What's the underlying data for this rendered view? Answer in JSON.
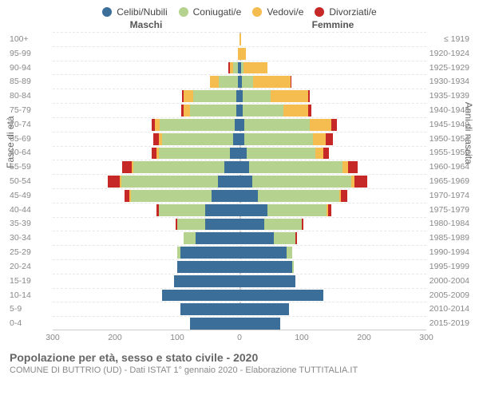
{
  "legend": [
    {
      "label": "Celibi/Nubili",
      "color": "#3b6e98"
    },
    {
      "label": "Coniugati/e",
      "color": "#b5d28e"
    },
    {
      "label": "Vedovi/e",
      "color": "#f5bc4f"
    },
    {
      "label": "Divorziati/e",
      "color": "#c62828"
    }
  ],
  "gender_left": "Maschi",
  "gender_right": "Femmine",
  "y_left_title": "Fasce di età",
  "y_right_title": "Anni di nascita",
  "footer_title": "Popolazione per età, sesso e stato civile - 2020",
  "footer_sub": "COMUNE DI BUTTRIO (UD) - Dati ISTAT 1° gennaio 2020 - Elaborazione TUTTITALIA.IT",
  "xaxis": {
    "max": 300,
    "ticks": [
      300,
      200,
      100,
      0,
      100,
      200,
      300
    ]
  },
  "colors": {
    "celibi": "#3b6e98",
    "coniugati": "#b5d28e",
    "vedovi": "#f5bc4f",
    "divorziati": "#c62828",
    "grid": "#e8e8e8",
    "center_line": "#cccccc",
    "text_muted": "#888888",
    "background": "#ffffff"
  },
  "fonts": {
    "base": 11,
    "legend": 12,
    "title": 14,
    "axis_label": 12,
    "tick": 10.5,
    "family": "Arial"
  },
  "rows": [
    {
      "age": "100+",
      "birth": "≤ 1919",
      "m": {
        "c": 0,
        "g": 0,
        "v": 0,
        "d": 0
      },
      "f": {
        "c": 0,
        "g": 0,
        "v": 2,
        "d": 0
      }
    },
    {
      "age": "95-99",
      "birth": "1920-1924",
      "m": {
        "c": 0,
        "g": 0,
        "v": 2,
        "d": 0
      },
      "f": {
        "c": 0,
        "g": 0,
        "v": 10,
        "d": 0
      }
    },
    {
      "age": "90-94",
      "birth": "1925-1929",
      "m": {
        "c": 2,
        "g": 8,
        "v": 6,
        "d": 2
      },
      "f": {
        "c": 2,
        "g": 5,
        "v": 38,
        "d": 0
      }
    },
    {
      "age": "85-89",
      "birth": "1930-1934",
      "m": {
        "c": 3,
        "g": 30,
        "v": 15,
        "d": 0
      },
      "f": {
        "c": 4,
        "g": 18,
        "v": 60,
        "d": 2
      }
    },
    {
      "age": "80-84",
      "birth": "1935-1939",
      "m": {
        "c": 5,
        "g": 70,
        "v": 15,
        "d": 2
      },
      "f": {
        "c": 5,
        "g": 45,
        "v": 60,
        "d": 3
      }
    },
    {
      "age": "75-79",
      "birth": "1940-1944",
      "m": {
        "c": 5,
        "g": 75,
        "v": 10,
        "d": 3
      },
      "f": {
        "c": 5,
        "g": 65,
        "v": 40,
        "d": 5
      }
    },
    {
      "age": "70-74",
      "birth": "1945-1949",
      "m": {
        "c": 8,
        "g": 120,
        "v": 8,
        "d": 5
      },
      "f": {
        "c": 8,
        "g": 105,
        "v": 35,
        "d": 8
      }
    },
    {
      "age": "65-69",
      "birth": "1950-1954",
      "m": {
        "c": 10,
        "g": 115,
        "v": 5,
        "d": 8
      },
      "f": {
        "c": 8,
        "g": 110,
        "v": 20,
        "d": 12
      }
    },
    {
      "age": "60-64",
      "birth": "1955-1959",
      "m": {
        "c": 15,
        "g": 115,
        "v": 3,
        "d": 8
      },
      "f": {
        "c": 12,
        "g": 110,
        "v": 12,
        "d": 10
      }
    },
    {
      "age": "55-59",
      "birth": "1960-1964",
      "m": {
        "c": 25,
        "g": 145,
        "v": 3,
        "d": 15
      },
      "f": {
        "c": 15,
        "g": 150,
        "v": 10,
        "d": 15
      }
    },
    {
      "age": "50-54",
      "birth": "1965-1969",
      "m": {
        "c": 35,
        "g": 155,
        "v": 2,
        "d": 20
      },
      "f": {
        "c": 20,
        "g": 160,
        "v": 5,
        "d": 20
      }
    },
    {
      "age": "45-49",
      "birth": "1970-1974",
      "m": {
        "c": 45,
        "g": 130,
        "v": 2,
        "d": 8
      },
      "f": {
        "c": 30,
        "g": 130,
        "v": 3,
        "d": 10
      }
    },
    {
      "age": "40-44",
      "birth": "1975-1979",
      "m": {
        "c": 55,
        "g": 75,
        "v": 0,
        "d": 3
      },
      "f": {
        "c": 45,
        "g": 95,
        "v": 2,
        "d": 5
      }
    },
    {
      "age": "35-39",
      "birth": "1980-1984",
      "m": {
        "c": 55,
        "g": 45,
        "v": 0,
        "d": 2
      },
      "f": {
        "c": 40,
        "g": 60,
        "v": 0,
        "d": 3
      }
    },
    {
      "age": "30-34",
      "birth": "1985-1989",
      "m": {
        "c": 70,
        "g": 20,
        "v": 0,
        "d": 0
      },
      "f": {
        "c": 55,
        "g": 35,
        "v": 0,
        "d": 2
      }
    },
    {
      "age": "25-29",
      "birth": "1990-1994",
      "m": {
        "c": 95,
        "g": 5,
        "v": 0,
        "d": 0
      },
      "f": {
        "c": 75,
        "g": 10,
        "v": 0,
        "d": 0
      }
    },
    {
      "age": "20-24",
      "birth": "1995-1999",
      "m": {
        "c": 100,
        "g": 0,
        "v": 0,
        "d": 0
      },
      "f": {
        "c": 85,
        "g": 2,
        "v": 0,
        "d": 0
      }
    },
    {
      "age": "15-19",
      "birth": "2000-2004",
      "m": {
        "c": 105,
        "g": 0,
        "v": 0,
        "d": 0
      },
      "f": {
        "c": 90,
        "g": 0,
        "v": 0,
        "d": 0
      }
    },
    {
      "age": "10-14",
      "birth": "2005-2009",
      "m": {
        "c": 125,
        "g": 0,
        "v": 0,
        "d": 0
      },
      "f": {
        "c": 135,
        "g": 0,
        "v": 0,
        "d": 0
      }
    },
    {
      "age": "5-9",
      "birth": "2010-2014",
      "m": {
        "c": 95,
        "g": 0,
        "v": 0,
        "d": 0
      },
      "f": {
        "c": 80,
        "g": 0,
        "v": 0,
        "d": 0
      }
    },
    {
      "age": "0-4",
      "birth": "2015-2019",
      "m": {
        "c": 80,
        "g": 0,
        "v": 0,
        "d": 0
      },
      "f": {
        "c": 65,
        "g": 0,
        "v": 0,
        "d": 0
      }
    }
  ]
}
